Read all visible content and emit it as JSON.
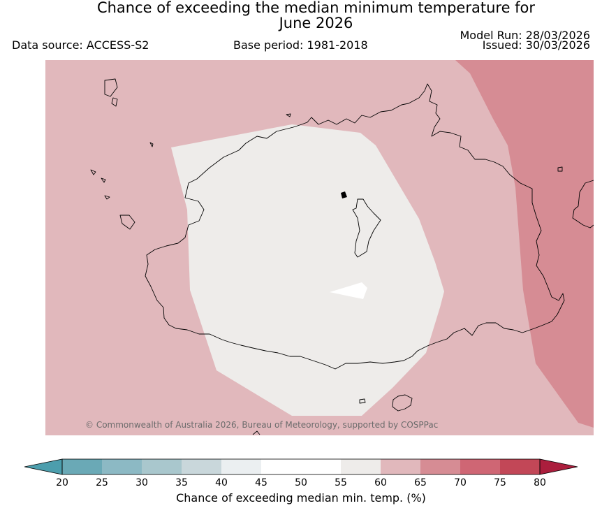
{
  "header": {
    "title_line1": "Chance of exceeding the median minimum temperature for",
    "title_line2": "June 2026",
    "data_source": "Data source: ACCESS-S2",
    "base_period": "Base period: 1981-2018",
    "model_run": "Model Run: 28/03/2026",
    "issued": "Issued: 30/03/2026"
  },
  "map": {
    "copyright": "© Commonwealth of Australia 2026, Bureau of Meteorology, supported by COSPPac",
    "regions": [
      {
        "category": "60-65",
        "color": "#e1b8bc"
      },
      {
        "category": "65-70",
        "color": "#d68c94"
      },
      {
        "category": "55-60",
        "color": "#eeecea"
      },
      {
        "category": "50-55",
        "color": "#ffffff"
      }
    ]
  },
  "colorbar": {
    "label": "Chance of exceeding median min. temp. (%)",
    "ticks": [
      "20",
      "25",
      "30",
      "35",
      "40",
      "45",
      "50",
      "55",
      "60",
      "65",
      "70",
      "75",
      "80"
    ],
    "under_color": "#4c9ead",
    "over_color": "#ab1e3d",
    "colors": [
      "#6aa9b6",
      "#8cb9c4",
      "#a9c7cd",
      "#c9d7db",
      "#ebeff1",
      "#ffffff",
      "#ffffff",
      "#eeecea",
      "#e1b8bc",
      "#d68c94",
      "#cf6674",
      "#c24757"
    ]
  }
}
